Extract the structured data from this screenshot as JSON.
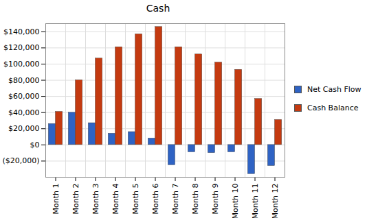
{
  "chart_data": {
    "type": "bar",
    "title": "Cash",
    "categories": [
      "Month 1",
      "Month 2",
      "Month 3",
      "Month 4",
      "Month 5",
      "Month 6",
      "Month 7",
      "Month 8",
      "Month 9",
      "Month 10",
      "Month 11",
      "Month 12"
    ],
    "series": [
      {
        "name": "Net Cash Flow",
        "color": "#2f63c4",
        "values": [
          26000,
          40000,
          27000,
          14000,
          16000,
          8000,
          -25000,
          -9000,
          -10000,
          -9000,
          -36000,
          -26000
        ]
      },
      {
        "name": "Cash Balance",
        "color": "#c43a10",
        "values": [
          41000,
          80000,
          107000,
          121000,
          137000,
          146000,
          121000,
          112000,
          102000,
          93000,
          57000,
          31000
        ]
      }
    ],
    "ylim": [
      -40000,
      150000
    ],
    "yticks": [
      {
        "value": -20000,
        "label": "($20,000)"
      },
      {
        "value": 0,
        "label": "$0"
      },
      {
        "value": 20000,
        "label": "$20,000"
      },
      {
        "value": 40000,
        "label": "$40,000"
      },
      {
        "value": 60000,
        "label": "$60,000"
      },
      {
        "value": 80000,
        "label": "$80,000"
      },
      {
        "value": 100000,
        "label": "$100,000"
      },
      {
        "value": 120000,
        "label": "$120,000"
      },
      {
        "value": 140000,
        "label": "$140,000"
      }
    ],
    "grid": true,
    "legend": "right"
  }
}
